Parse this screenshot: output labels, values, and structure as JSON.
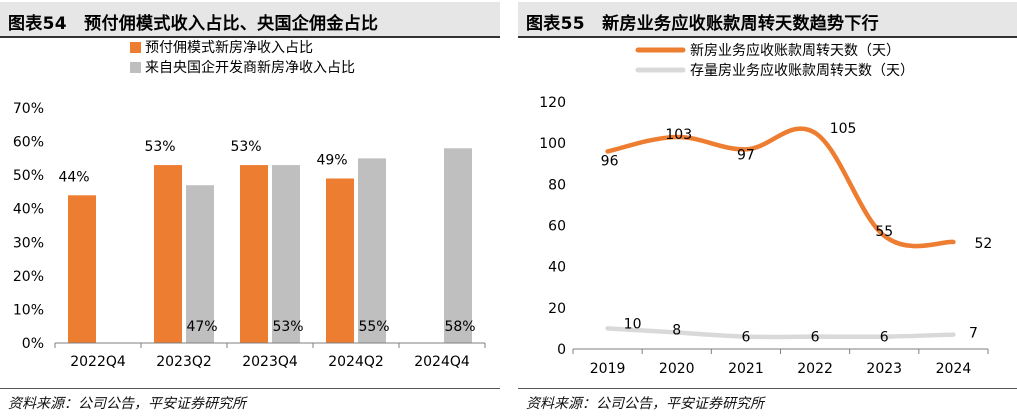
{
  "left": {
    "title": "图表54　预付佣模式收入占比、央国企佣金占比",
    "source": "资料来源：公司公告，平安证券研究所"
  },
  "right": {
    "title": "图表55　新房业务应收账款周转天数趋势下行",
    "source": "资料来源：公司公告，平安证券研究所"
  },
  "colors": {
    "orange": "#ed7d31",
    "gray": "#bfbfbf"
  },
  "chart_data": [
    {
      "type": "bar",
      "categories": [
        "2022Q4",
        "2023Q2",
        "2023Q4",
        "2024Q2",
        "2024Q4"
      ],
      "series": [
        {
          "name": "预付佣模式新房净收入占比",
          "values": [
            44,
            53,
            53,
            49,
            null
          ],
          "labels": [
            "44%",
            "53%",
            "53%",
            "49%",
            ""
          ],
          "color": "#ed7d31"
        },
        {
          "name": "来自央国企开发商新房净收入占比",
          "values": [
            null,
            47,
            53,
            55,
            58
          ],
          "labels": [
            "",
            "47%",
            "53%",
            "55%",
            "58%"
          ],
          "color": "#bfbfbf"
        }
      ],
      "ylim": [
        0,
        70
      ],
      "yticks": [
        0,
        10,
        20,
        30,
        40,
        50,
        60,
        70
      ],
      "ytick_labels": [
        "0%",
        "10%",
        "20%",
        "30%",
        "40%",
        "50%",
        "60%",
        "70%"
      ],
      "legend_position": "top-left",
      "grid": false
    },
    {
      "type": "line",
      "x": [
        "2019",
        "2020",
        "2021",
        "2022",
        "2023",
        "2024"
      ],
      "series": [
        {
          "name": "新房业务应收账款周转天数（天）",
          "values": [
            96,
            103,
            97,
            105,
            55,
            52
          ],
          "labels": [
            "96",
            "103",
            "97",
            "105",
            "55",
            "52"
          ],
          "color": "#ed7d31"
        },
        {
          "name": "存量房业务应收账款周转天数（天）",
          "values": [
            10,
            8,
            6,
            6,
            6,
            7
          ],
          "labels": [
            "10",
            "8",
            "6",
            "6",
            "6",
            "7"
          ],
          "color": "#d9d9d9"
        }
      ],
      "ylim": [
        0,
        120
      ],
      "yticks": [
        0,
        20,
        40,
        60,
        80,
        100,
        120
      ],
      "ytick_labels": [
        "0",
        "20",
        "40",
        "60",
        "80",
        "100",
        "120"
      ],
      "legend_position": "top-center",
      "grid": false
    }
  ]
}
